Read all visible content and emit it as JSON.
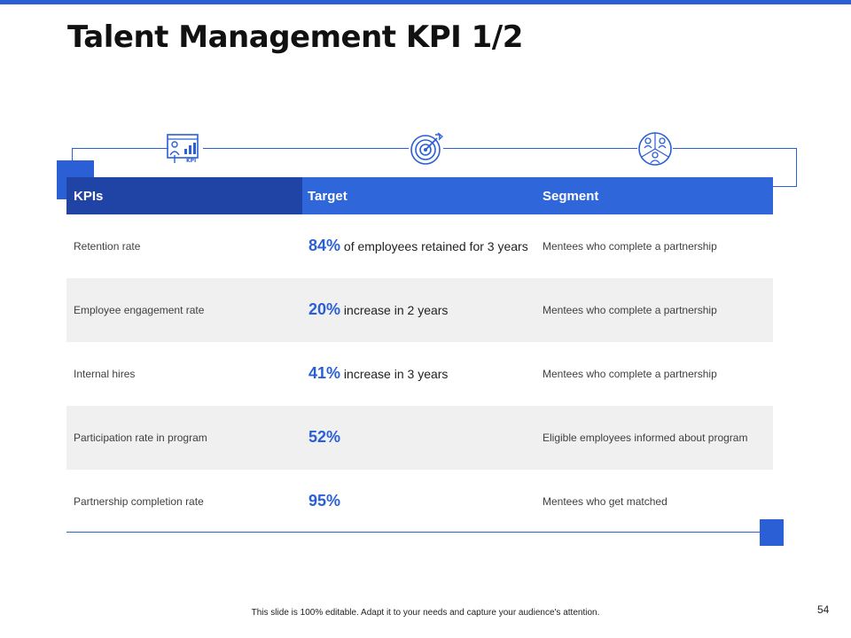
{
  "slide": {
    "title": "Talent Management KPI 1/2",
    "page_number": "54",
    "footer": "This slide is 100% editable. Adapt it to your needs and capture your audience's attention.",
    "accent_color": "#2a5fd6",
    "header_dark_color": "#2044a6"
  },
  "icons": [
    {
      "name": "kpi-board-icon",
      "label": "KPI"
    },
    {
      "name": "target-icon"
    },
    {
      "name": "people-segment-icon"
    }
  ],
  "table": {
    "headers": [
      "KPIs",
      "Target",
      "Segment"
    ],
    "rows": [
      {
        "kpi": "Retention rate",
        "pct": "84%",
        "target_text": " of employees retained for 3 years",
        "segment": "Mentees who complete a partnership"
      },
      {
        "kpi": "Employee engagement rate",
        "pct": "20%",
        "target_text": " increase in 2 years",
        "segment": "Mentees who complete a partnership"
      },
      {
        "kpi": "Internal hires",
        "pct": "41%",
        "target_text": " increase in 3 years",
        "segment": "Mentees who complete a partnership"
      },
      {
        "kpi": "Participation rate in program",
        "pct": "52%",
        "target_text": "",
        "segment": "Eligible employees informed about program"
      },
      {
        "kpi": "Partnership completion rate",
        "pct": "95%",
        "target_text": "",
        "segment": "Mentees who get matched"
      }
    ]
  }
}
